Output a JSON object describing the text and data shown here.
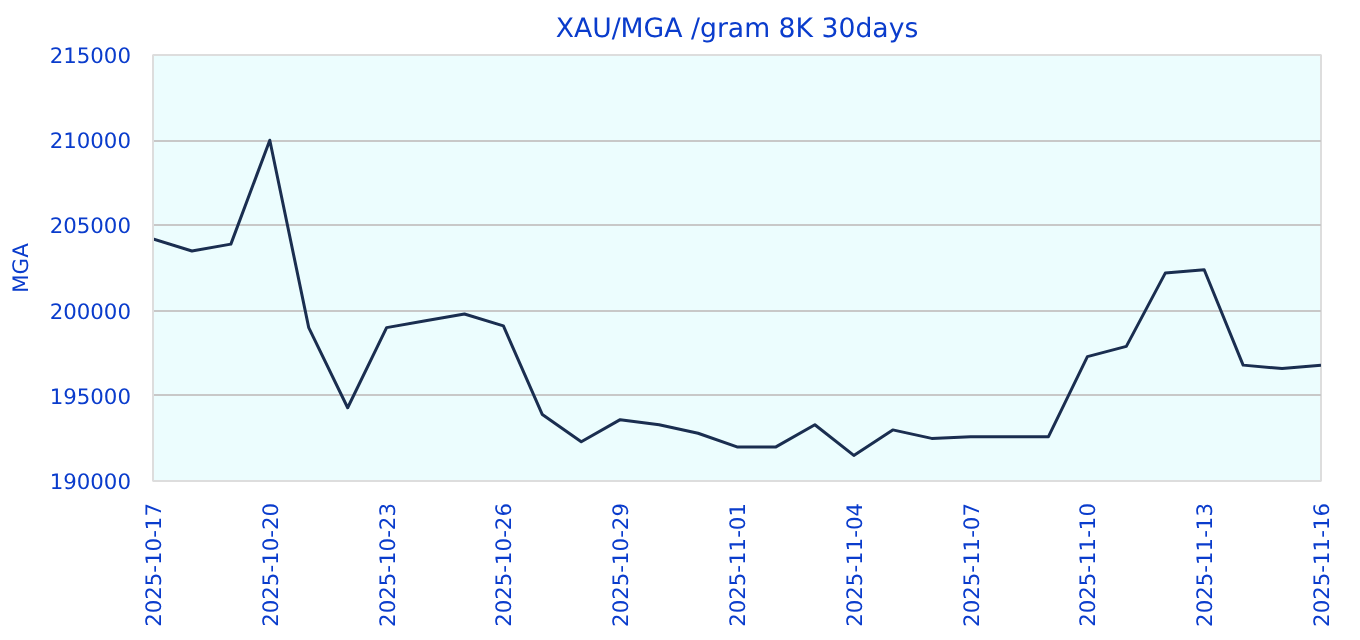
{
  "chart_data": {
    "type": "line",
    "title": "XAU/MGA /gram 8K 30days",
    "ylabel": "MGA",
    "x": [
      "2025-10-17",
      "2025-10-18",
      "2025-10-19",
      "2025-10-20",
      "2025-10-21",
      "2025-10-22",
      "2025-10-23",
      "2025-10-24",
      "2025-10-25",
      "2025-10-26",
      "2025-10-27",
      "2025-10-28",
      "2025-10-29",
      "2025-10-30",
      "2025-10-31",
      "2025-11-01",
      "2025-11-02",
      "2025-11-03",
      "2025-11-04",
      "2025-11-05",
      "2025-11-06",
      "2025-11-07",
      "2025-11-08",
      "2025-11-09",
      "2025-11-10",
      "2025-11-11",
      "2025-11-12",
      "2025-11-13",
      "2025-11-14",
      "2025-11-15",
      "2025-11-16"
    ],
    "series": [
      {
        "color": "#1a2e50",
        "values": [
          204200,
          203500,
          203900,
          210000,
          199000,
          194300,
          199000,
          199400,
          199800,
          199100,
          193900,
          192300,
          193600,
          193300,
          192800,
          192000,
          192000,
          193300,
          191500,
          193000,
          192500,
          192600,
          192600,
          192600,
          197300,
          197900,
          202200,
          202400,
          196800,
          196600,
          196800
        ]
      }
    ],
    "xlim": [
      "2025-10-17",
      "2025-11-16"
    ],
    "xticks": [
      "2025-10-17",
      "2025-10-20",
      "2025-10-23",
      "2025-10-26",
      "2025-10-29",
      "2025-11-01",
      "2025-11-04",
      "2025-11-07",
      "2025-11-10",
      "2025-11-13",
      "2025-11-16"
    ],
    "ylim": [
      190000,
      215000
    ],
    "yticks": [
      190000,
      195000,
      200000,
      205000,
      210000,
      215000
    ],
    "grid": "y",
    "marker": "none",
    "line_style": "solid"
  }
}
